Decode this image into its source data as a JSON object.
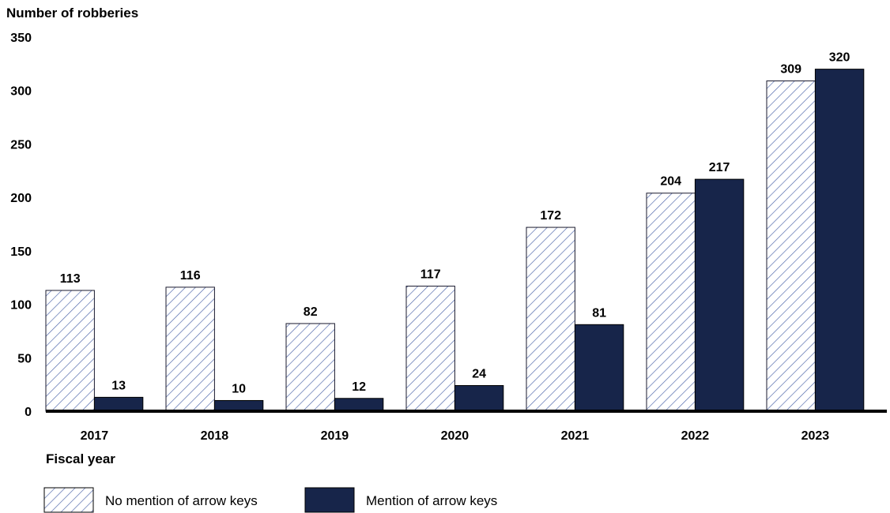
{
  "chart_data": {
    "type": "bar",
    "ylabel": "Number of robberies",
    "xlabel": "Fiscal year",
    "categories": [
      "2017",
      "2018",
      "2019",
      "2020",
      "2021",
      "2022",
      "2023"
    ],
    "series": [
      {
        "name": "No mention of arrow keys",
        "values": [
          113,
          116,
          82,
          117,
          172,
          204,
          309
        ],
        "color": "#3b5998",
        "fill": "diagonal-hatch"
      },
      {
        "name": "Mention of arrow keys",
        "values": [
          13,
          10,
          12,
          24,
          81,
          217,
          320
        ],
        "color": "#17254a",
        "fill": "solid"
      }
    ],
    "ylim": [
      0,
      350
    ],
    "yticks": [
      0,
      50,
      100,
      150,
      200,
      250,
      300,
      350
    ],
    "grid": false,
    "legend_position": "bottom-left"
  }
}
